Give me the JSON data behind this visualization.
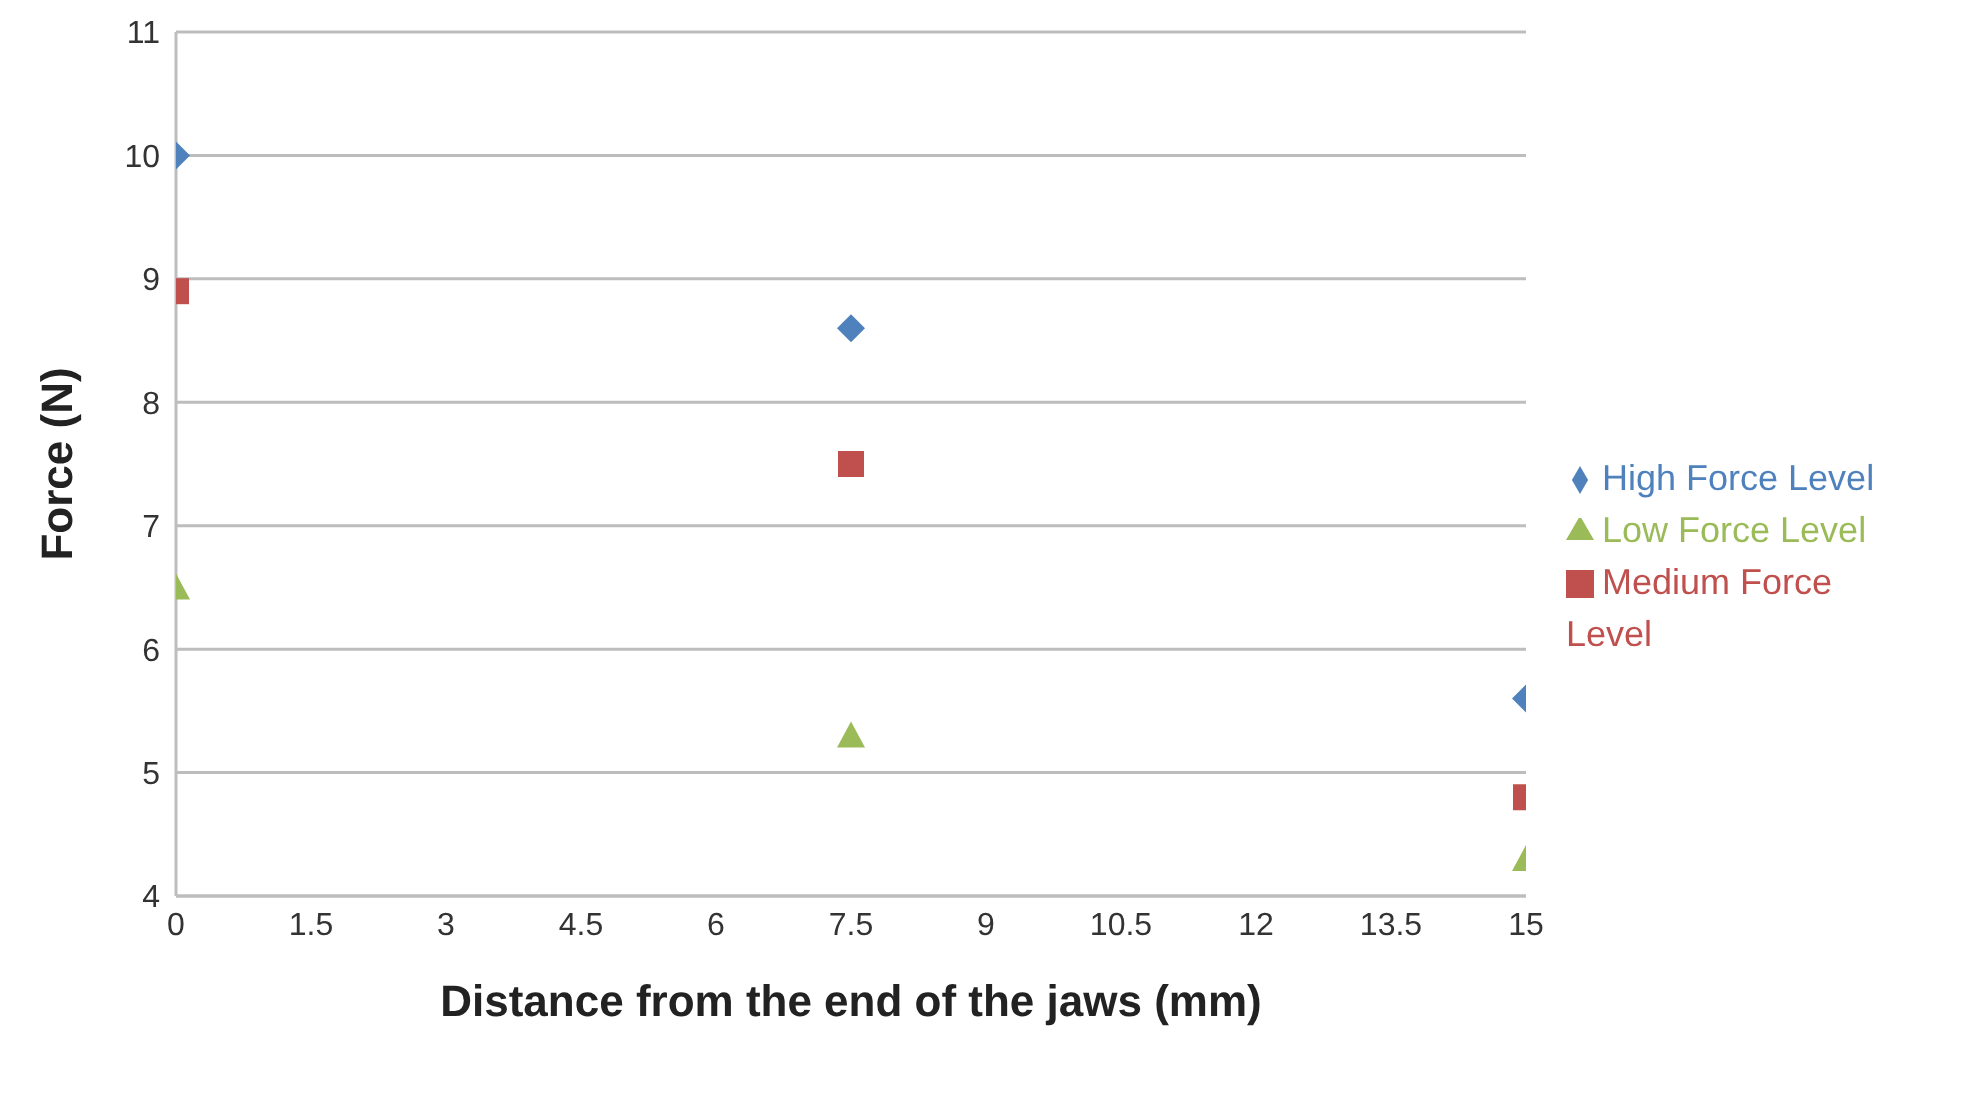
{
  "chart_data": {
    "type": "scatter",
    "xlabel": "Distance from the end of the jaws (mm)",
    "ylabel": "Force (N)",
    "xlim": [
      0,
      15
    ],
    "xticks": [
      0,
      1.5,
      3,
      4.5,
      6,
      7.5,
      9,
      10.5,
      12,
      13.5,
      15
    ],
    "ylim": [
      4,
      11
    ],
    "yticks": [
      4,
      5,
      6,
      7,
      8,
      9,
      10,
      11
    ],
    "grid": "y",
    "legend": "right",
    "series": [
      {
        "name": "High Force Level",
        "color": "#4f81bd",
        "marker": "diamond",
        "x": [
          0,
          7.5,
          15
        ],
        "values": [
          10,
          8.6,
          5.6
        ]
      },
      {
        "name": "Medium Force Level",
        "color": "#c0504d",
        "marker": "square",
        "x": [
          0,
          7.5,
          15
        ],
        "values": [
          8.9,
          7.5,
          4.8
        ]
      },
      {
        "name": "Low Force Level",
        "color": "#9bbb59",
        "marker": "triangle",
        "x": [
          0,
          7.5,
          15
        ],
        "values": [
          6.5,
          5.3,
          4.3
        ]
      }
    ]
  }
}
